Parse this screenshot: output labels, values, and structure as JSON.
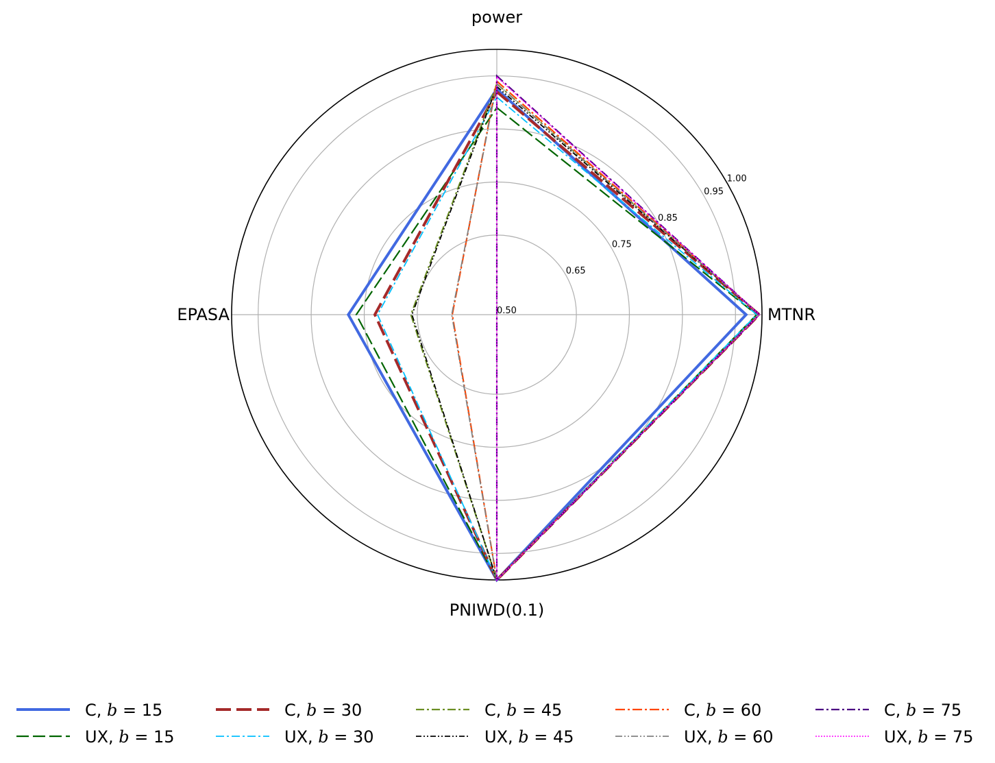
{
  "chart_data": {
    "type": "radar",
    "axes": [
      "power",
      "MTNR",
      "PNIWD(0.1)",
      "EPASA"
    ],
    "rticks": [
      0.5,
      0.65,
      0.75,
      0.85,
      0.95,
      1.0
    ],
    "rtick_labels": [
      "0.50",
      "0.65",
      "0.75",
      "0.85",
      "0.95",
      "1.00"
    ],
    "rlim": [
      0.5,
      1.0
    ],
    "grid": true,
    "legend_position": "bottom",
    "series": [
      {
        "name": "C, b = 15",
        "label_parts": [
          "C, ",
          "b",
          " = 15"
        ],
        "values": [
          0.925,
          0.97,
          1.0,
          0.78
        ],
        "color": "#4169e1",
        "dash": "",
        "width": 4
      },
      {
        "name": "UX, b = 15",
        "label_parts": [
          "UX, ",
          "b",
          " = 15"
        ],
        "values": [
          0.89,
          0.99,
          1.0,
          0.765
        ],
        "color": "#006400",
        "dash": "18 6",
        "width": 2.2
      },
      {
        "name": "C, b = 30",
        "label_parts": [
          "C, ",
          "b",
          " = 30"
        ],
        "values": [
          0.92,
          0.995,
          1.0,
          0.73
        ],
        "color": "#a52a2a",
        "dash": "22 8",
        "width": 4
      },
      {
        "name": "UX, b = 30",
        "label_parts": [
          "UX, ",
          "b",
          " = 30"
        ],
        "values": [
          0.91,
          0.99,
          1.0,
          0.725
        ],
        "color": "#00bfff",
        "dash": "12 4 3 4",
        "width": 1.8
      },
      {
        "name": "C, b = 45",
        "label_parts": [
          "C, ",
          "b",
          " = 45"
        ],
        "values": [
          0.935,
          0.995,
          1.0,
          0.662
        ],
        "color": "#6b8e23",
        "dash": "12 4 3 4",
        "width": 2.2
      },
      {
        "name": "UX, b = 45",
        "label_parts": [
          "UX, ",
          "b",
          " = 45"
        ],
        "values": [
          0.93,
          0.995,
          1.0,
          0.66
        ],
        "color": "#000000",
        "dash": "8 3 2 3 2 3",
        "width": 1.8
      },
      {
        "name": "C, b = 60",
        "label_parts": [
          "C, ",
          "b",
          " = 60"
        ],
        "values": [
          0.94,
          0.995,
          1.0,
          0.584
        ],
        "color": "#ff4500",
        "dash": "14 4 3 4",
        "width": 2.2
      },
      {
        "name": "UX, b = 60",
        "label_parts": [
          "UX, ",
          "b",
          " = 60"
        ],
        "values": [
          0.935,
          0.995,
          1.0,
          0.585
        ],
        "color": "#808080",
        "dash": "10 3 2 3 2 3",
        "width": 1.8
      },
      {
        "name": "C, b = 75",
        "label_parts": [
          "C, ",
          "b",
          " = 75"
        ],
        "values": [
          0.95,
          0.995,
          1.0,
          0.5
        ],
        "color": "#4b0082",
        "dash": "12 4 3 4",
        "width": 2.2
      },
      {
        "name": "UX, b = 75",
        "label_parts": [
          "UX, ",
          "b",
          " = 75"
        ],
        "values": [
          0.948,
          0.995,
          1.0,
          0.5
        ],
        "color": "#ff00ff",
        "dash": "2 2",
        "width": 1.6
      }
    ]
  }
}
